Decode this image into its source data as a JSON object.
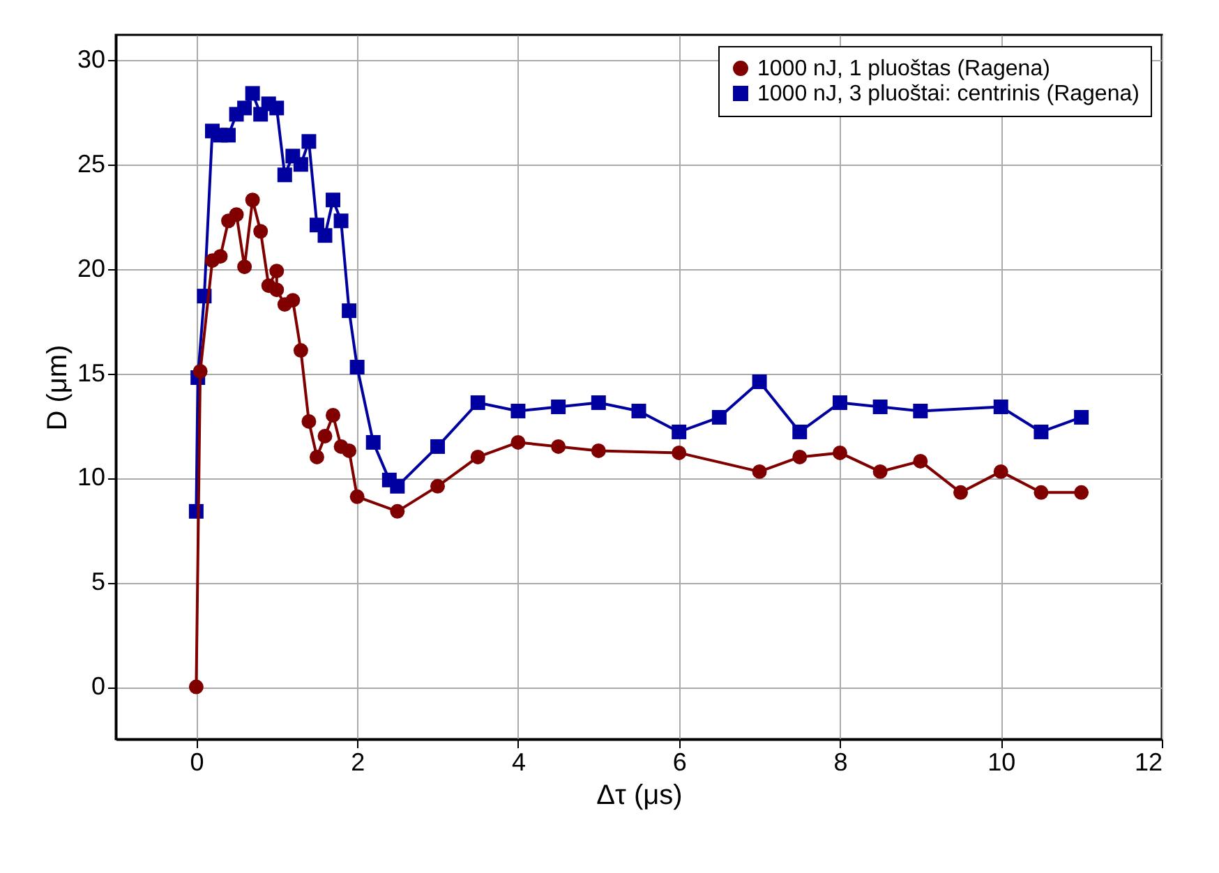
{
  "chart_data": {
    "type": "line",
    "xlabel": "Δτ (μs)",
    "ylabel": "D (μm)",
    "xlim": [
      -1,
      12
    ],
    "ylim": [
      -2.5,
      31.2
    ],
    "xticks": [
      0,
      2,
      4,
      6,
      8,
      10,
      12
    ],
    "yticks": [
      0,
      5,
      10,
      15,
      20,
      25,
      30
    ],
    "grid": true,
    "legend": "top right",
    "line_style": "solid",
    "series": [
      {
        "name": "1000 nJ, 1 pluoštas (Ragena)",
        "color": "#800000",
        "marker": "circle",
        "x": [
          0,
          0.05,
          0.2,
          0.3,
          0.4,
          0.5,
          0.6,
          0.7,
          0.8,
          0.9,
          1.0,
          1.0,
          1.1,
          1.2,
          1.3,
          1.4,
          1.5,
          1.6,
          1.7,
          1.8,
          1.9,
          2.0,
          2.5,
          3,
          3.5,
          4,
          4.5,
          5,
          6,
          7,
          7.5,
          8,
          8.5,
          9,
          9.5,
          10,
          10.5,
          11
        ],
        "values": [
          0,
          15.1,
          20.4,
          20.6,
          22.3,
          22.6,
          20.1,
          23.3,
          21.8,
          19.2,
          19.9,
          19.0,
          18.3,
          18.5,
          16.1,
          12.7,
          11.0,
          12.0,
          13.0,
          11.5,
          11.3,
          9.1,
          8.4,
          9.6,
          11.0,
          11.7,
          11.5,
          11.3,
          11.2,
          10.3,
          11.0,
          11.2,
          10.3,
          10.8,
          9.3,
          10.3,
          9.3,
          9.3
        ]
      },
      {
        "name": "1000 nJ, 3 pluoštai: centrinis (Ragena)",
        "color": "#0000a0",
        "marker": "square",
        "x": [
          0,
          0.02,
          0.1,
          0.2,
          0.3,
          0.4,
          0.5,
          0.6,
          0.7,
          0.8,
          0.9,
          1.0,
          1.1,
          1.2,
          1.3,
          1.4,
          1.5,
          1.6,
          1.7,
          1.8,
          1.9,
          2.0,
          2.2,
          2.4,
          2.5,
          3,
          3.5,
          4,
          4.5,
          5,
          5.5,
          6,
          6.5,
          7,
          7.5,
          8,
          8.5,
          9,
          10,
          10.5,
          11
        ],
        "values": [
          8.4,
          14.8,
          18.7,
          26.6,
          26.4,
          26.4,
          27.4,
          27.7,
          28.4,
          27.4,
          27.9,
          27.7,
          24.5,
          25.4,
          25.0,
          26.1,
          22.1,
          21.6,
          23.3,
          22.3,
          18.0,
          15.3,
          11.7,
          9.9,
          9.6,
          11.5,
          13.6,
          13.2,
          13.4,
          13.6,
          13.2,
          12.2,
          12.9,
          14.6,
          12.2,
          13.6,
          13.4,
          13.2,
          13.4,
          12.2,
          12.9
        ]
      }
    ]
  }
}
